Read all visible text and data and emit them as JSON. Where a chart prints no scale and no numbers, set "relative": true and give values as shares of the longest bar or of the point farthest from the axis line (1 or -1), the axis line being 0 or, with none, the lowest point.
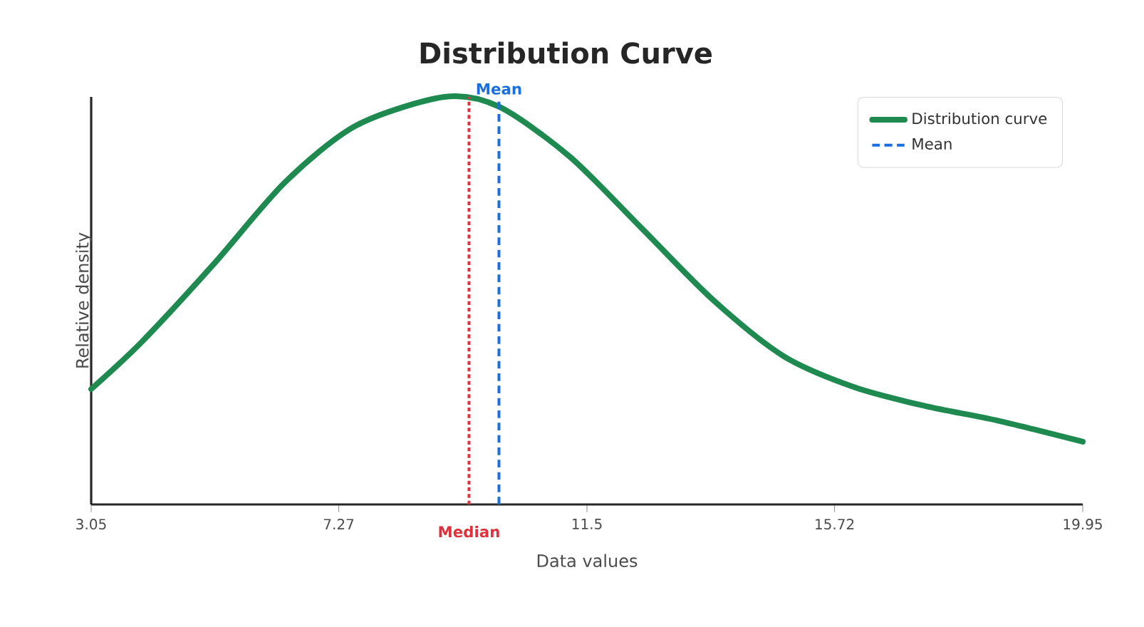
{
  "chart_data": {
    "type": "line",
    "title": "Distribution Curve",
    "xlabel": "Data values",
    "ylabel": "Relative density",
    "relative": true,
    "xlim": [
      3.05,
      19.95
    ],
    "xticks": [
      3.05,
      7.27,
      11.5,
      15.72,
      19.95
    ],
    "series": [
      {
        "name": "Distribution curve",
        "color": "#1e8a50",
        "x": [
          3.05,
          3.92,
          5.14,
          6.35,
          7.57,
          9.07,
          10.0,
          11.21,
          12.43,
          13.64,
          14.85,
          16.07,
          17.28,
          18.49,
          19.95
        ],
        "values": [
          0.283,
          0.4,
          0.59,
          0.79,
          0.93,
          1.0,
          0.976,
          0.853,
          0.678,
          0.503,
          0.364,
          0.287,
          0.241,
          0.206,
          0.154
        ]
      }
    ],
    "ref_lines": [
      {
        "axis": "x",
        "value": 10.0,
        "label": "Mean",
        "color": "#1a6fe0",
        "line_style": "dashed"
      },
      {
        "axis": "x",
        "value": 9.49,
        "label": "Median",
        "color": "#e0323c",
        "line_style": "dotted"
      }
    ],
    "legend": "top right",
    "grid": false,
    "marker": "none",
    "line_style": "solid"
  }
}
